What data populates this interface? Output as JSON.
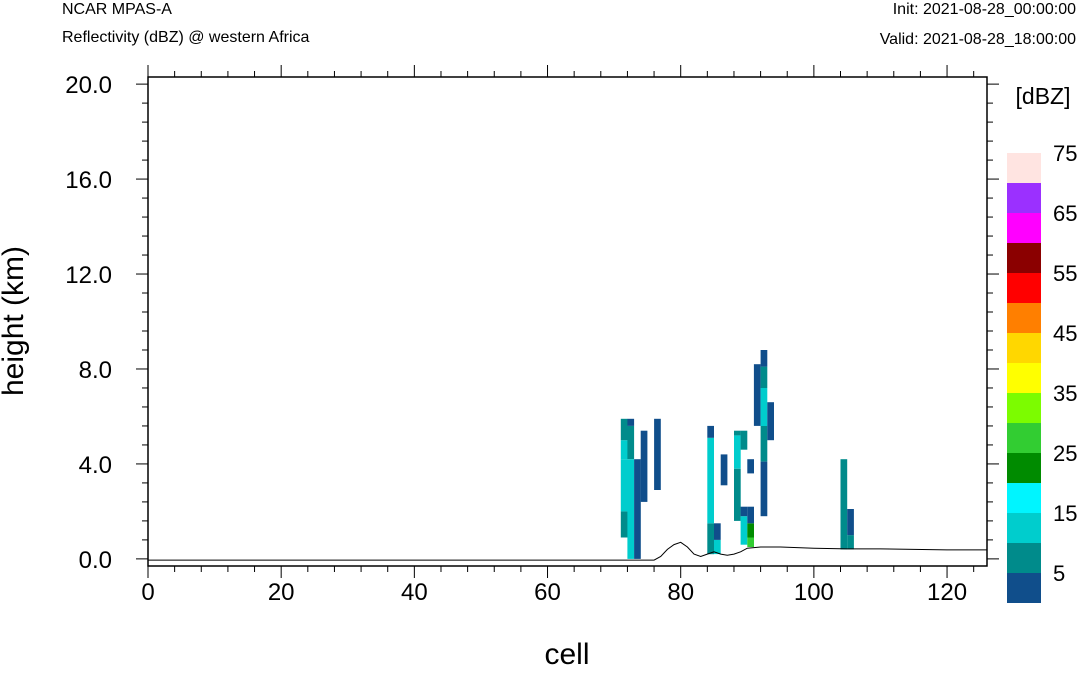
{
  "header": {
    "left_line1": "NCAR MPAS-A",
    "left_line2": "Reflectivity (dBZ) @ western Africa",
    "right_line1": "Init: 2021-08-28_00:00:00",
    "right_line2": "Valid: 2021-08-28_18:00:00"
  },
  "chart_data": {
    "type": "heatmap",
    "xlabel": "cell",
    "ylabel": "height (km)",
    "xlim": [
      0,
      126
    ],
    "ylim": [
      -0.3,
      20.3
    ],
    "x_ticks": [
      0,
      20,
      40,
      60,
      80,
      100,
      120
    ],
    "y_ticks": [
      0,
      4,
      8,
      12,
      16,
      20
    ],
    "x_tick_labels": [
      "0",
      "20",
      "40",
      "60",
      "80",
      "100",
      "120"
    ],
    "y_tick_labels": [
      "0.0",
      "4.0",
      "8.0",
      "12.0",
      "16.0",
      "20.0"
    ],
    "grid": false,
    "colorbar": {
      "units": "[dBZ]",
      "levels": [
        0,
        5,
        10,
        15,
        20,
        25,
        30,
        35,
        40,
        45,
        50,
        55,
        60,
        65,
        70,
        75
      ],
      "labels": [
        "5",
        "15",
        "25",
        "35",
        "45",
        "55",
        "65",
        "75"
      ],
      "label_values": [
        5,
        15,
        25,
        35,
        45,
        55,
        65,
        75
      ],
      "colors": [
        "#104e8b",
        "#008b8b",
        "#00cdcd",
        "#00f5ff",
        "#008b00",
        "#32cd32",
        "#7cfc00",
        "#ffff00",
        "#ffd700",
        "#ff7f00",
        "#ff0000",
        "#8b0000",
        "#ff00ff",
        "#9b30ff",
        "#ffe4e1"
      ]
    },
    "columns": [
      {
        "x": 71,
        "segments": [
          [
            0.9,
            2.0,
            7
          ],
          [
            2.0,
            4.2,
            12
          ],
          [
            4.2,
            5.0,
            12
          ],
          [
            5.0,
            5.9,
            7
          ]
        ]
      },
      {
        "x": 72,
        "segments": [
          [
            0.0,
            4.2,
            12
          ],
          [
            4.2,
            5.6,
            7
          ],
          [
            5.6,
            5.9,
            2
          ]
        ]
      },
      {
        "x": 73,
        "segments": [
          [
            0.0,
            4.2,
            2
          ]
        ]
      },
      {
        "x": 74,
        "segments": [
          [
            2.4,
            5.4,
            2
          ]
        ]
      },
      {
        "x": 76,
        "segments": [
          [
            2.9,
            5.9,
            2
          ]
        ]
      },
      {
        "x": 84,
        "segments": [
          [
            0.2,
            1.5,
            7
          ],
          [
            1.5,
            5.1,
            12
          ],
          [
            5.1,
            5.6,
            2
          ]
        ]
      },
      {
        "x": 85,
        "segments": [
          [
            0.2,
            0.8,
            12
          ],
          [
            0.8,
            1.5,
            2
          ]
        ]
      },
      {
        "x": 86,
        "segments": [
          [
            3.1,
            4.4,
            2
          ]
        ]
      },
      {
        "x": 88,
        "segments": [
          [
            1.6,
            3.8,
            7
          ],
          [
            3.8,
            5.2,
            12
          ],
          [
            5.2,
            5.4,
            7
          ]
        ]
      },
      {
        "x": 89,
        "segments": [
          [
            0.6,
            1.8,
            12
          ],
          [
            1.8,
            2.2,
            2
          ],
          [
            4.6,
            5.4,
            7
          ]
        ]
      },
      {
        "x": 90,
        "segments": [
          [
            0.5,
            0.9,
            27
          ],
          [
            0.9,
            1.5,
            22
          ],
          [
            1.5,
            2.2,
            2
          ],
          [
            3.6,
            4.2,
            2
          ]
        ]
      },
      {
        "x": 91,
        "segments": [
          [
            5.6,
            8.2,
            2
          ]
        ]
      },
      {
        "x": 92,
        "segments": [
          [
            1.8,
            4.1,
            2
          ],
          [
            4.1,
            5.6,
            7
          ],
          [
            5.6,
            7.2,
            12
          ],
          [
            7.2,
            8.1,
            7
          ],
          [
            8.1,
            8.8,
            2
          ]
        ]
      },
      {
        "x": 93,
        "segments": [
          [
            5.0,
            6.6,
            2
          ]
        ]
      },
      {
        "x": 104,
        "segments": [
          [
            0.4,
            4.2,
            7
          ]
        ]
      },
      {
        "x": 105,
        "segments": [
          [
            0.4,
            1.0,
            7
          ],
          [
            1.0,
            2.1,
            2
          ]
        ]
      }
    ],
    "terrain": {
      "x": [
        0,
        72,
        74,
        76,
        77,
        78,
        79,
        80,
        81,
        82,
        83,
        84,
        85,
        86,
        87,
        88,
        89,
        90,
        92,
        95,
        100,
        105,
        110,
        115,
        120,
        126
      ],
      "y": [
        -0.05,
        -0.05,
        -0.05,
        -0.05,
        0.1,
        0.4,
        0.6,
        0.7,
        0.5,
        0.2,
        0.1,
        0.2,
        0.3,
        0.2,
        0.15,
        0.2,
        0.3,
        0.45,
        0.5,
        0.5,
        0.45,
        0.42,
        0.42,
        0.4,
        0.38,
        0.38
      ]
    }
  }
}
